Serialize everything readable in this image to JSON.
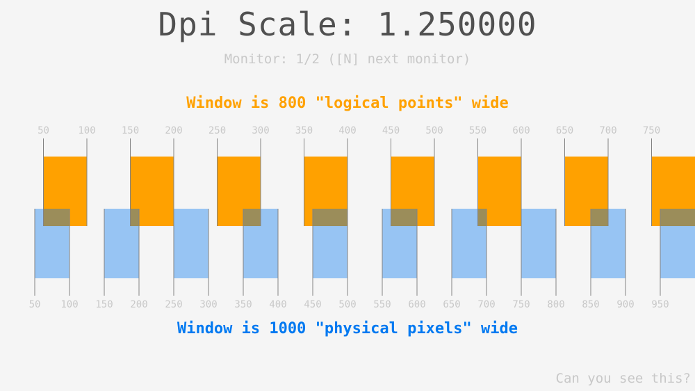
{
  "title": "Dpi Scale: 1.250000",
  "monitor_text": "Monitor: 1/2 ([N] next monitor)",
  "logical_text": "Window is 800 \"logical points\" wide",
  "physical_text": "Window is 1000 \"physical pixels\" wide",
  "footer_text": "Can you see this?",
  "dpi_scale": 1.25,
  "logical_width": 800,
  "physical_width": 1000,
  "tick_step": 50,
  "colors": {
    "logical": "#ffa100",
    "physical": "#97c4f3",
    "overlap": "#9b8d5a",
    "tick_line": "#828282",
    "tick_label": "#c8c8c8"
  }
}
